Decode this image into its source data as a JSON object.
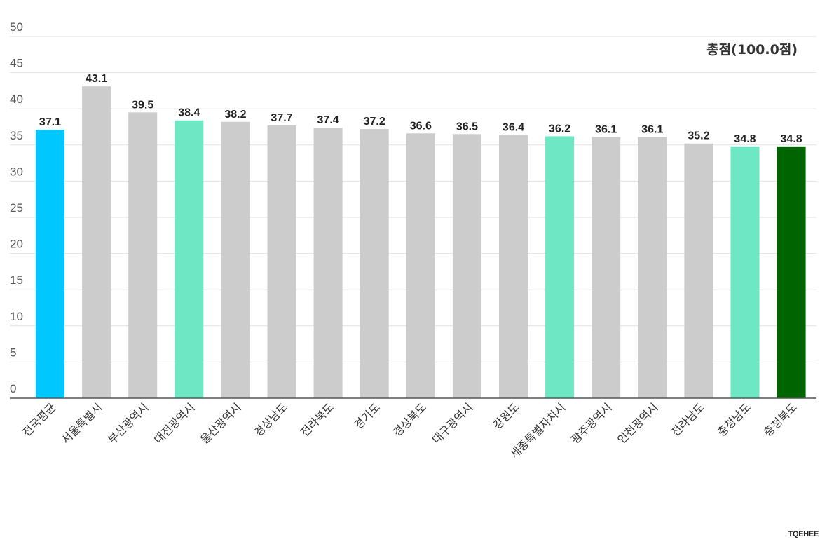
{
  "chart_data": {
    "type": "bar",
    "title": "총점(100.0점)",
    "xlabel": "",
    "ylabel": "",
    "ylim": [
      0,
      50
    ],
    "yticks": [
      0,
      5,
      10,
      15,
      20,
      25,
      30,
      35,
      40,
      45,
      50
    ],
    "grid": true,
    "categories": [
      "전국평균",
      "서울특별시",
      "부산광역시",
      "대전광역시",
      "울산광역시",
      "경상남도",
      "전라북도",
      "경기도",
      "경상북도",
      "대구광역시",
      "강원도",
      "세종특별자치시",
      "광주광역시",
      "인천광역시",
      "전라남도",
      "충청남도",
      "충청북도"
    ],
    "values": [
      37.1,
      43.1,
      39.5,
      38.4,
      38.2,
      37.7,
      37.4,
      37.2,
      36.6,
      36.5,
      36.4,
      36.2,
      36.1,
      36.1,
      35.2,
      34.8,
      34.8
    ],
    "labels": [
      "37.1",
      "43.1",
      "39.5",
      "38.4",
      "38.2",
      "37.7",
      "37.4",
      "37.2",
      "36.6",
      "36.5",
      "36.4",
      "36.2",
      "36.1",
      "36.1",
      "35.2",
      "34.8",
      "34.8"
    ],
    "colors": [
      "#00c8ff",
      "#cccccc",
      "#cccccc",
      "#6ee8c4",
      "#cccccc",
      "#cccccc",
      "#cccccc",
      "#cccccc",
      "#cccccc",
      "#cccccc",
      "#cccccc",
      "#6ee8c4",
      "#cccccc",
      "#cccccc",
      "#cccccc",
      "#6ee8c4",
      "#006400"
    ]
  },
  "brand": "TQEHEE"
}
